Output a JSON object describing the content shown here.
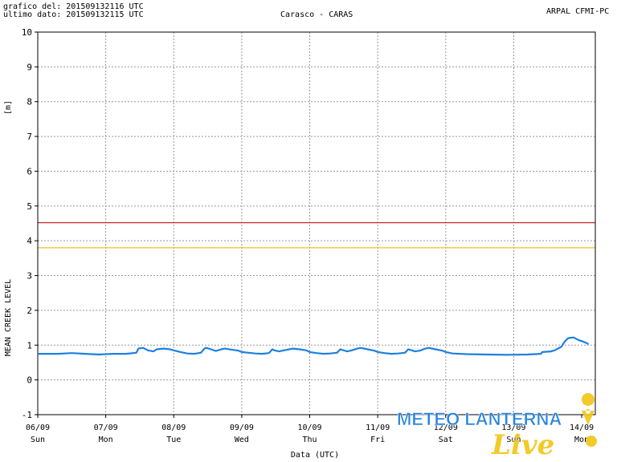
{
  "header": {
    "line1": "grafico del: 201509132116 UTC",
    "line2": "ultimo dato: 201509132115 UTC",
    "title": "Carasco - CARAS",
    "source": "ARPAL CFMI-PC"
  },
  "watermark": {
    "text_main": "METEO LANTERNA",
    "text_script": "Live"
  },
  "colors": {
    "series": "#1e7fe0",
    "red_threshold": "#cc2a2a",
    "yellow_threshold": "#f0c020",
    "grid": "#999999",
    "watermark_blue": "#1e7fe0",
    "watermark_yellow": "#f2c81e"
  },
  "chart_data": {
    "type": "line",
    "ylabel_unit": "[m]",
    "ylabel": "MEAN CREEK LEVEL",
    "xlabel": "Data (UTC)",
    "ylim": [
      -1,
      10
    ],
    "yticks": [
      "-1",
      "0",
      "1",
      "2",
      "3",
      "4",
      "5",
      "6",
      "7",
      "8",
      "9",
      "10"
    ],
    "xlim": [
      0,
      8.2
    ],
    "xticks": [
      {
        "date": "06/09",
        "day": "Sun"
      },
      {
        "date": "07/09",
        "day": "Mon"
      },
      {
        "date": "08/09",
        "day": "Tue"
      },
      {
        "date": "09/09",
        "day": "Wed"
      },
      {
        "date": "10/09",
        "day": "Thu"
      },
      {
        "date": "11/09",
        "day": "Fri"
      },
      {
        "date": "12/09",
        "day": "Sat"
      },
      {
        "date": "13/09",
        "day": "Sun"
      },
      {
        "date": "14/09",
        "day": "Mon"
      }
    ],
    "thresholds": [
      {
        "value": 4.52,
        "color": "red"
      },
      {
        "value": 3.8,
        "color": "yellow"
      }
    ],
    "grid": true,
    "series": [
      {
        "x": [
          0,
          0.3,
          0.5,
          0.7,
          0.9,
          1.1,
          1.3,
          1.45,
          1.48,
          1.55,
          1.62,
          1.7,
          1.75,
          1.85,
          1.95,
          2.0,
          2.1,
          2.2,
          2.3,
          2.4,
          2.45,
          2.48,
          2.55,
          2.62,
          2.7,
          2.75,
          2.85,
          2.95,
          3.0,
          3.1,
          3.2,
          3.3,
          3.4,
          3.45,
          3.48,
          3.55,
          3.62,
          3.7,
          3.75,
          3.85,
          3.95,
          4.0,
          4.1,
          4.2,
          4.3,
          4.4,
          4.45,
          4.48,
          4.55,
          4.62,
          4.7,
          4.75,
          4.85,
          4.95,
          5.0,
          5.1,
          5.2,
          5.3,
          5.4,
          5.45,
          5.48,
          5.55,
          5.62,
          5.7,
          5.75,
          5.85,
          5.95,
          6.0,
          6.1,
          6.3,
          6.6,
          6.9,
          7.2,
          7.4,
          7.42,
          7.55,
          7.6,
          7.7,
          7.75,
          7.8,
          7.88,
          7.95,
          8.05,
          8.1
        ],
        "y": [
          0.75,
          0.75,
          0.77,
          0.75,
          0.73,
          0.75,
          0.75,
          0.78,
          0.9,
          0.92,
          0.85,
          0.82,
          0.88,
          0.9,
          0.88,
          0.85,
          0.8,
          0.76,
          0.75,
          0.78,
          0.9,
          0.92,
          0.88,
          0.83,
          0.88,
          0.9,
          0.87,
          0.84,
          0.8,
          0.78,
          0.76,
          0.75,
          0.77,
          0.88,
          0.85,
          0.82,
          0.85,
          0.88,
          0.9,
          0.88,
          0.85,
          0.8,
          0.77,
          0.75,
          0.76,
          0.78,
          0.88,
          0.86,
          0.82,
          0.85,
          0.9,
          0.92,
          0.88,
          0.84,
          0.8,
          0.77,
          0.75,
          0.76,
          0.78,
          0.88,
          0.86,
          0.82,
          0.84,
          0.9,
          0.92,
          0.88,
          0.84,
          0.8,
          0.76,
          0.74,
          0.73,
          0.72,
          0.73,
          0.75,
          0.8,
          0.82,
          0.85,
          0.95,
          1.1,
          1.2,
          1.22,
          1.15,
          1.08,
          1.03
        ]
      }
    ]
  }
}
